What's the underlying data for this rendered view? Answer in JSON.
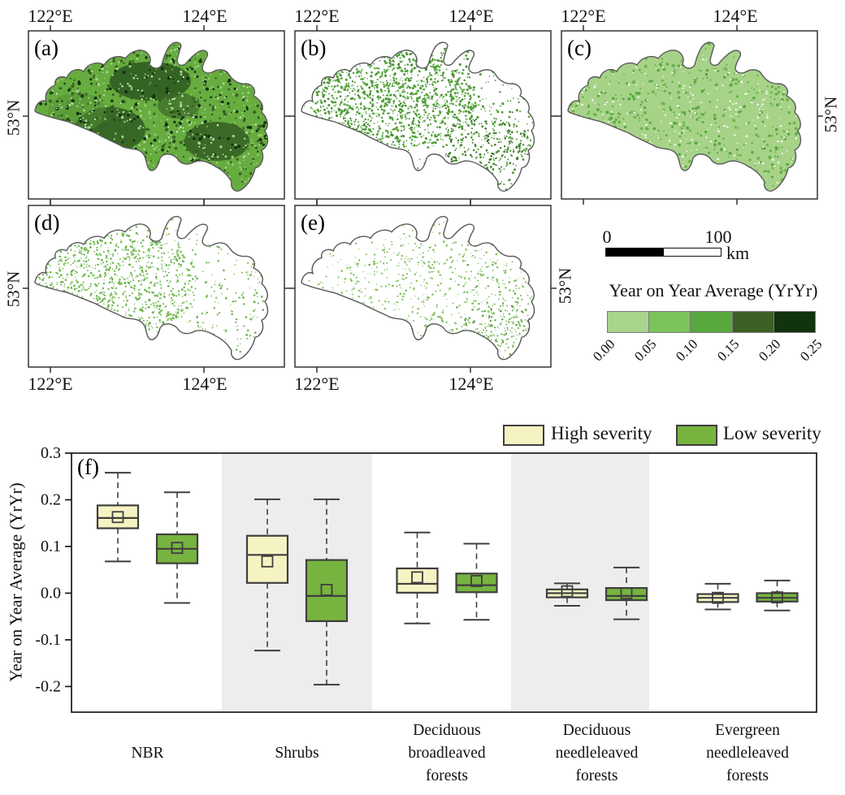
{
  "figure": {
    "panel_letters": {
      "a": "(a)",
      "b": "(b)",
      "c": "(c)",
      "d": "(d)",
      "e": "(e)",
      "f": "(f)"
    },
    "lon_ticks": [
      "122°E",
      "124°E"
    ],
    "lat_tick": "53°N"
  },
  "scalebar": {
    "start": "0",
    "end": "100",
    "unit": "km"
  },
  "colorbar": {
    "title": "Year on Year Average (YrYr)",
    "tick_labels": [
      "0.00",
      "0.05",
      "0.10",
      "0.15",
      "0.20",
      "0.25"
    ],
    "colors": [
      "#a9d48c",
      "#7cc35b",
      "#58a83e",
      "#3c6026",
      "#11330e"
    ]
  },
  "legend": {
    "high": {
      "label": "High severity",
      "color": "#f6f3c3"
    },
    "low": {
      "label": "Low severity",
      "color": "#77b43f"
    }
  },
  "chart_data": {
    "maps": {
      "type": "heatmap",
      "description": "Five map panels (a-e) of the same burned region showing Year on Year Average (YrYr) on a 5-step green scale.",
      "value_range": [
        0.0,
        0.25
      ],
      "lon_ticks": [
        "122°E",
        "124°E"
      ],
      "lat_tick": "53°N",
      "scalebar": {
        "start_km": 0,
        "end_km": 100,
        "unit": "km"
      },
      "colorbar_title": "Year on Year Average (YrYr)",
      "colorbar_ticks": [
        0.0,
        0.05,
        0.1,
        0.15,
        0.2,
        0.25
      ],
      "panels": [
        {
          "label": "(a)",
          "appearance": "dense medium-to-dark green cover with dark patches"
        },
        {
          "label": "(b)",
          "appearance": "white background, dense medium-green speckle concentrated west-center"
        },
        {
          "label": "(c)",
          "appearance": "nearly continuous light green cover"
        },
        {
          "label": "(d)",
          "appearance": "sparse light-green speckle, denser in the west"
        },
        {
          "label": "(e)",
          "appearance": "sparse light-green speckle, denser in center and southeast"
        }
      ]
    },
    "boxplot": {
      "type": "box",
      "panel": "(f)",
      "ylabel": "Year on Year Average (YrYr)",
      "ylim": [
        -0.255,
        0.3
      ],
      "yticks": [
        "0.3",
        "0.2",
        "0.1",
        "0.0",
        "-0.1",
        "-0.2"
      ],
      "ytick_values": [
        0.3,
        0.2,
        0.1,
        0.0,
        -0.1,
        -0.2
      ],
      "categories": [
        "NBR",
        "Shrubs",
        "Deciduous broadleaved forests",
        "Deciduous needleleaved forests",
        "Evergreen needleleaved forests"
      ],
      "category_lines": [
        [
          "NBR"
        ],
        [
          "Shrubs"
        ],
        [
          "Deciduous",
          "broadleaved",
          "forests"
        ],
        [
          "Deciduous",
          "needleleaved",
          "forests"
        ],
        [
          "Evergreen",
          "needleleaved",
          "forests"
        ]
      ],
      "shaded_categories": [
        "Shrubs",
        "Deciduous needleleaved forests"
      ],
      "legend_position": "top-right",
      "series": [
        {
          "name": "High severity",
          "color": "#f6f3c3",
          "boxes": [
            {
              "whislo": 0.068,
              "q1": 0.139,
              "med": 0.161,
              "mean": 0.163,
              "q3": 0.188,
              "whishi": 0.258
            },
            {
              "whislo": -0.123,
              "q1": 0.022,
              "med": 0.082,
              "mean": 0.068,
              "q3": 0.123,
              "whishi": 0.201
            },
            {
              "whislo": -0.065,
              "q1": 0.001,
              "med": 0.02,
              "mean": 0.034,
              "q3": 0.053,
              "whishi": 0.13
            },
            {
              "whislo": -0.027,
              "q1": -0.009,
              "med": 0.0,
              "mean": 0.004,
              "q3": 0.008,
              "whishi": 0.021
            },
            {
              "whislo": -0.035,
              "q1": -0.019,
              "med": -0.01,
              "mean": -0.01,
              "q3": -0.002,
              "whishi": 0.02
            }
          ]
        },
        {
          "name": "Low severity",
          "color": "#77b43f",
          "boxes": [
            {
              "whislo": -0.021,
              "q1": 0.064,
              "med": 0.095,
              "mean": 0.097,
              "q3": 0.126,
              "whishi": 0.216
            },
            {
              "whislo": -0.196,
              "q1": -0.06,
              "med": -0.006,
              "mean": 0.007,
              "q3": 0.071,
              "whishi": 0.201
            },
            {
              "whislo": -0.057,
              "q1": 0.002,
              "med": 0.017,
              "mean": 0.026,
              "q3": 0.042,
              "whishi": 0.106
            },
            {
              "whislo": -0.056,
              "q1": -0.015,
              "med": -0.006,
              "mean": 0.0,
              "q3": 0.011,
              "whishi": 0.055
            },
            {
              "whislo": -0.037,
              "q1": -0.018,
              "med": -0.01,
              "mean": -0.009,
              "q3": 0.0,
              "whishi": 0.027
            }
          ]
        }
      ]
    }
  }
}
